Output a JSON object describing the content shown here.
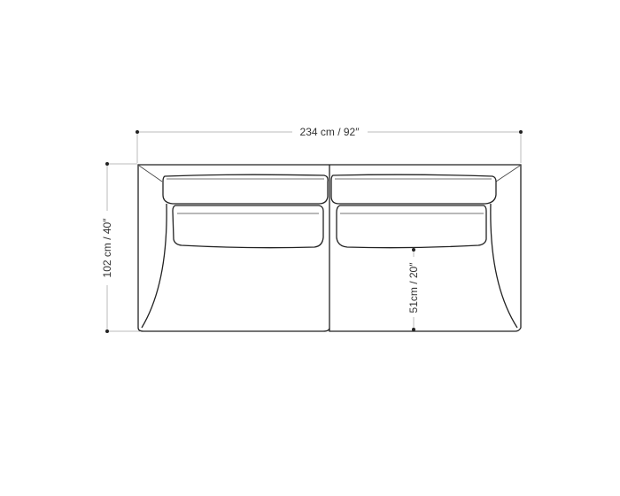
{
  "diagram": {
    "subject": "sofa top view",
    "dimensions": {
      "width": "234 cm / 92″",
      "depth": "102 cm / 40″",
      "seat_depth": "51cm / 20″"
    },
    "colors": {
      "outline": "#222222",
      "dimension_line": "#bbbbbb"
    }
  }
}
